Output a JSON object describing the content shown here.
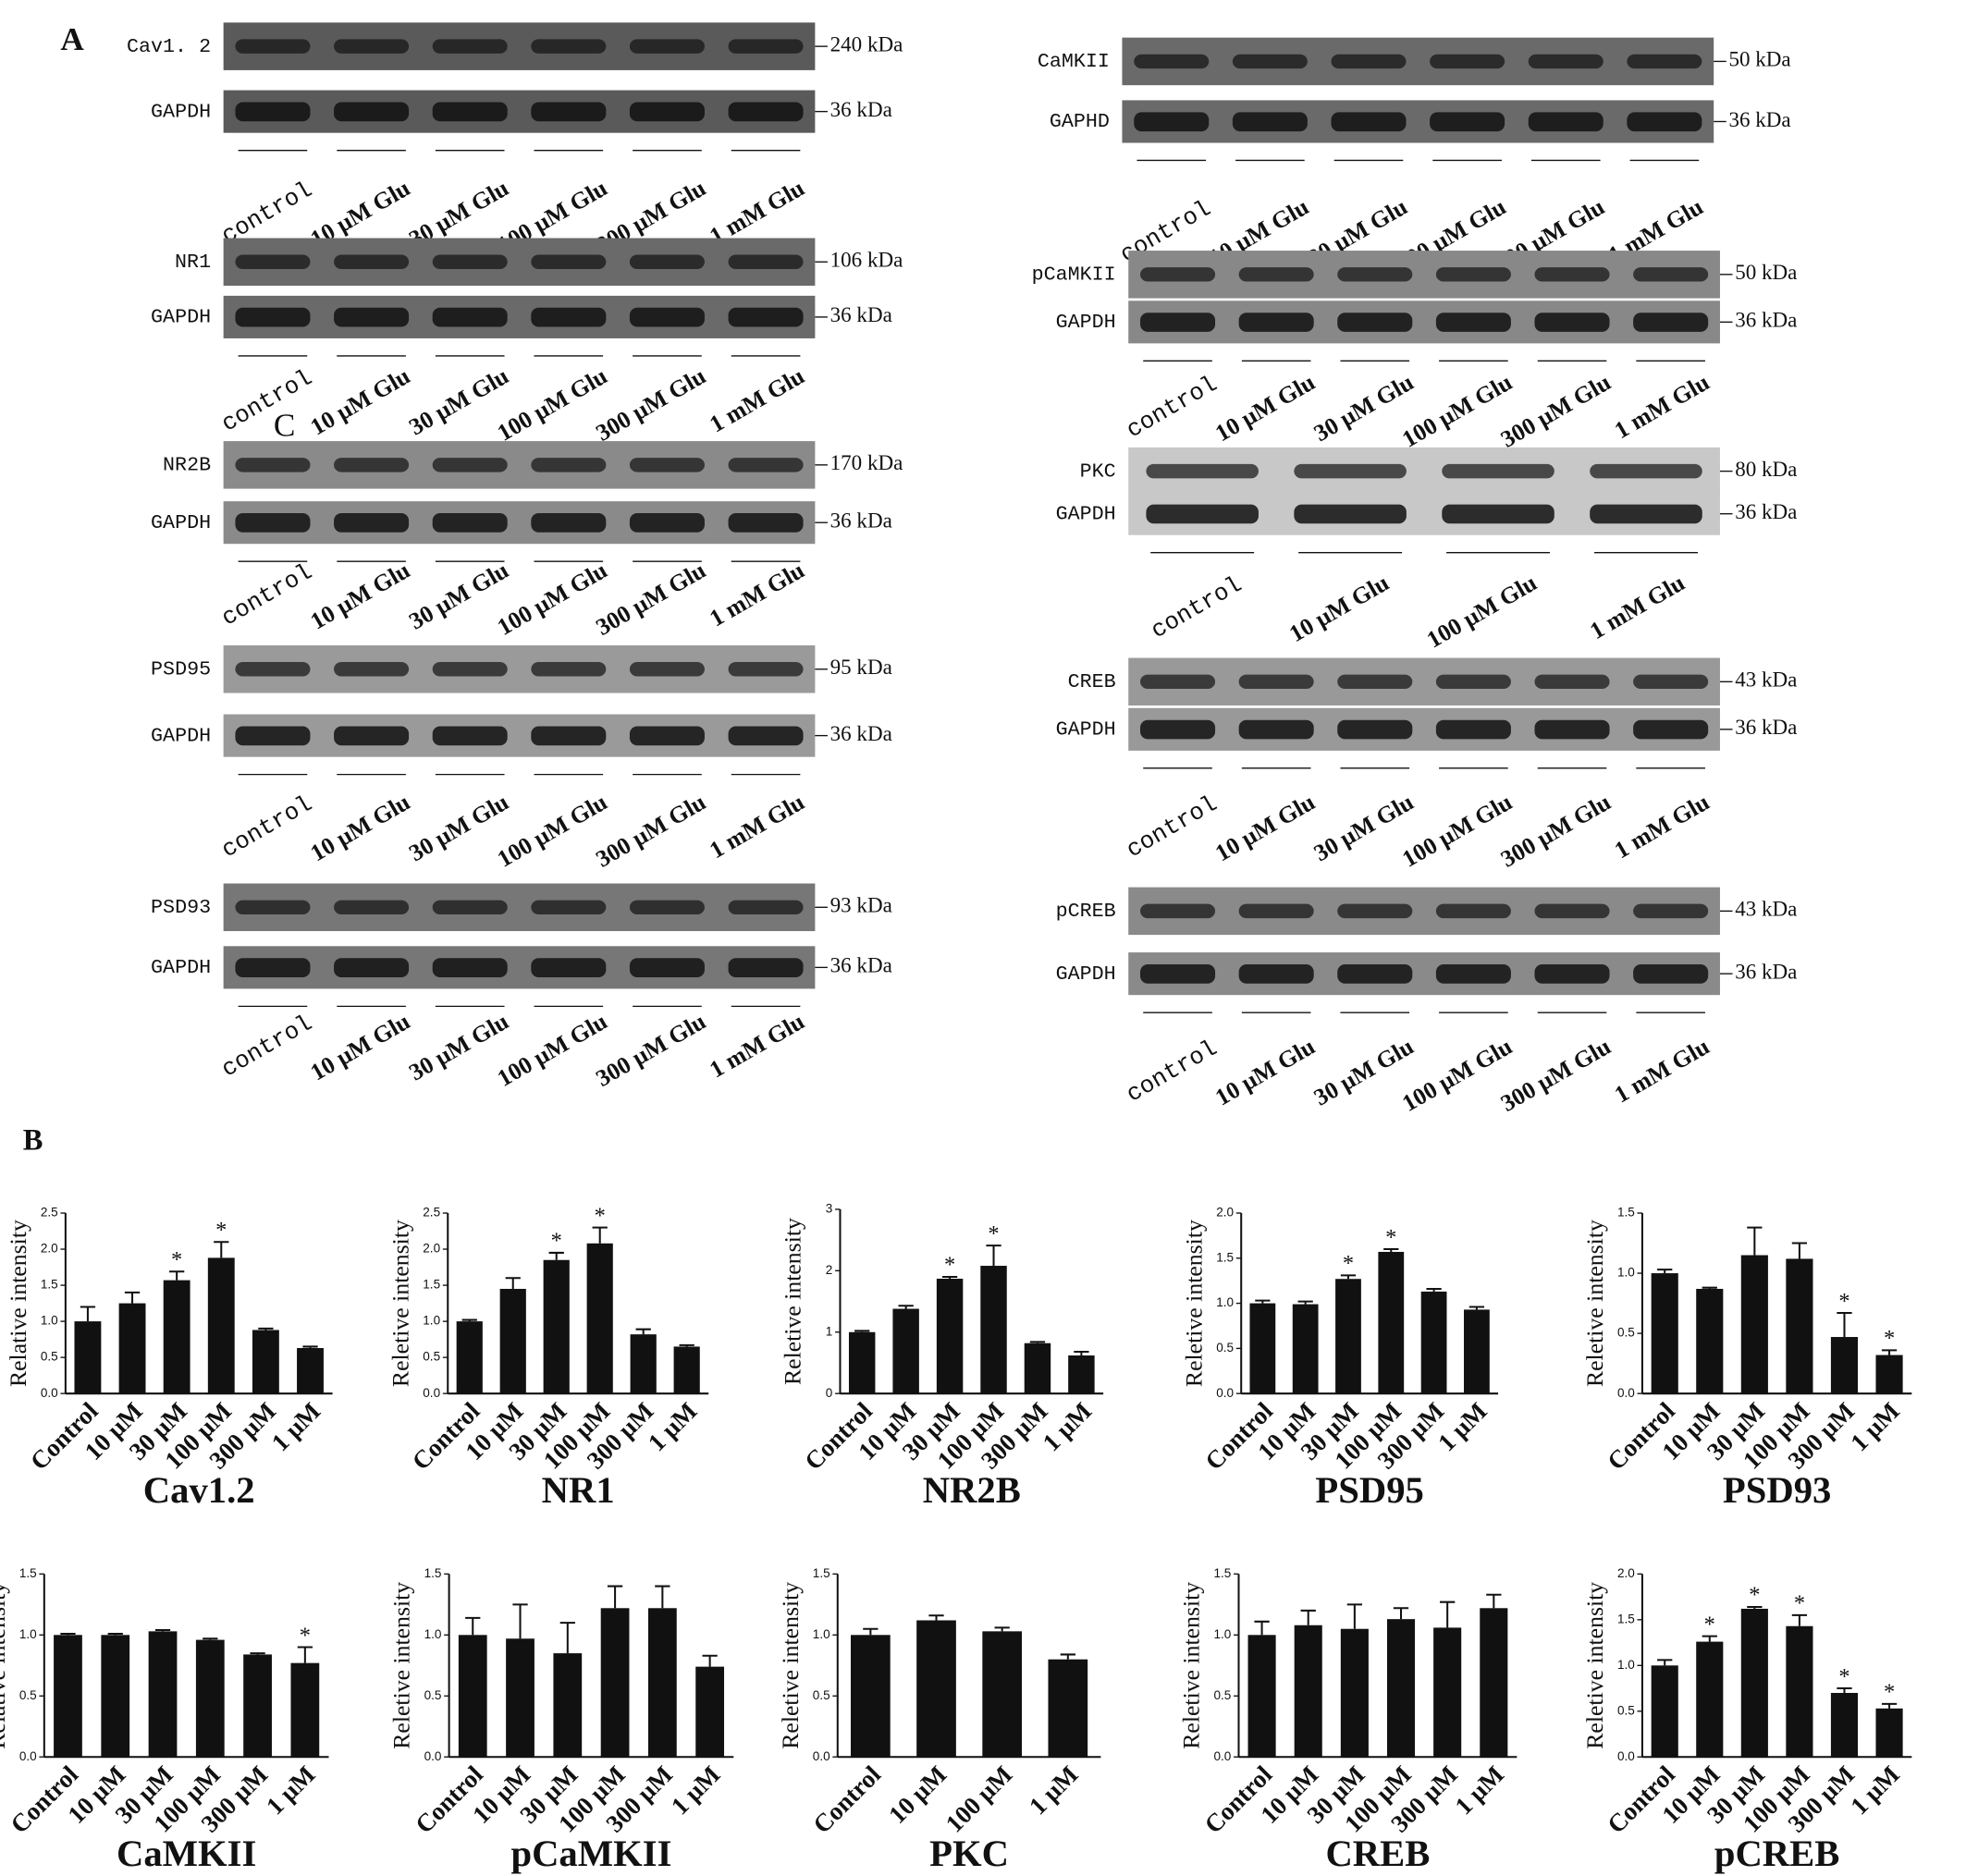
{
  "labels": {
    "a": "A",
    "b": "B",
    "c": "C"
  },
  "blots": [
    {
      "label": "Cav1. 2",
      "kda": "240 kDa",
      "loading": "GAPDH",
      "loading_kda": "36 kDa",
      "lanes": [
        "control",
        "10 μM Glu",
        "30 μM Glu",
        "100 μM Glu",
        "300 μM Glu",
        "1 mM Glu"
      ]
    },
    {
      "label": "NR1",
      "kda": "106 kDa",
      "loading": "GAPDH",
      "loading_kda": "36 kDa",
      "lanes": [
        "control",
        "10 μM Glu",
        "30 μM Glu",
        "100 μM Glu",
        "300 μM Glu",
        "1 mM Glu"
      ]
    },
    {
      "label": "NR2B",
      "kda": "170 kDa",
      "loading": "GAPDH",
      "loading_kda": "36 kDa",
      "lanes": [
        "control",
        "10 μM Glu",
        "30 μM Glu",
        "100 μM Glu",
        "300 μM Glu",
        "1 mM Glu"
      ]
    },
    {
      "label": "PSD95",
      "kda": "95 kDa",
      "loading": "GAPDH",
      "loading_kda": "36 kDa",
      "lanes": [
        "control",
        "10 μM Glu",
        "30 μM Glu",
        "100 μM Glu",
        "300 μM Glu",
        "1 mM Glu"
      ]
    },
    {
      "label": "PSD93",
      "kda": "93 kDa",
      "loading": "GAPDH",
      "loading_kda": "36 kDa",
      "lanes": [
        "control",
        "10 μM Glu",
        "30 μM Glu",
        "100 μM Glu",
        "300 μM Glu",
        "1 mM Glu"
      ]
    },
    {
      "label": "CaMKII",
      "kda": "50 kDa",
      "loading": "GAPHD",
      "loading_kda": "36 kDa",
      "lanes": [
        "control",
        "10 μM Glu",
        "30 μM Glu",
        "100 μM Glu",
        "300 μM Glu",
        "1 mM Glu"
      ]
    },
    {
      "label": "pCaMKII",
      "kda": "50 kDa",
      "loading": "GAPDH",
      "loading_kda": "36 kDa",
      "lanes": [
        "control",
        "10 μM Glu",
        "30 μM Glu",
        "100 μM Glu",
        "300 μM Glu",
        "1 mM Glu"
      ]
    },
    {
      "label": "PKC",
      "kda": "80 kDa",
      "loading": "GAPDH",
      "loading_kda": "36 kDa",
      "lanes": [
        "control",
        "10 μM Glu",
        "100 μM Glu",
        "1 mM Glu"
      ]
    },
    {
      "label": "CREB",
      "kda": "43 kDa",
      "loading": "GAPDH",
      "loading_kda": "36 kDa",
      "lanes": [
        "control",
        "10 μM Glu",
        "30 μM Glu",
        "100 μM Glu",
        "300 μM Glu",
        "1 mM Glu"
      ]
    },
    {
      "label": "pCREB",
      "kda": "43 kDa",
      "loading": "GAPDH",
      "loading_kda": "36 kDa",
      "lanes": [
        "control",
        "10 μM Glu",
        "30 μM Glu",
        "100 μM Glu",
        "300 μM Glu",
        "1 mM Glu"
      ]
    }
  ],
  "chart_data": [
    {
      "type": "bar",
      "title": "Cav1.2",
      "ylabel": "Relative intensity",
      "color": "#111111",
      "categories": [
        "Control",
        "10 μM",
        "30 μM",
        "100 μM",
        "300 μM",
        "1 μM"
      ],
      "values": [
        1.0,
        1.25,
        1.57,
        1.88,
        0.88,
        0.63
      ],
      "errors": [
        0.2,
        0.15,
        0.12,
        0.22,
        0.02,
        0.02
      ],
      "significance": [
        null,
        null,
        "*",
        "*",
        null,
        null
      ],
      "ylim": [
        0,
        2.5
      ],
      "yticks": [
        {
          "value": 0,
          "label": "0.0"
        },
        0.5,
        {
          "value": 1,
          "label": "1.0"
        },
        1.5,
        {
          "value": 2,
          "label": "2.0"
        },
        2.5
      ]
    },
    {
      "type": "bar",
      "title": "NR1",
      "ylabel": "Reletive intensity",
      "color": "#111111",
      "categories": [
        "Control",
        "10 μM",
        "30 μM",
        "100 μM",
        "300 μM",
        "1 μM"
      ],
      "values": [
        1.0,
        1.45,
        1.85,
        2.08,
        0.82,
        0.65
      ],
      "errors": [
        0.02,
        0.15,
        0.1,
        0.22,
        0.07,
        0.02
      ],
      "significance": [
        null,
        null,
        "*",
        "*",
        null,
        null
      ],
      "ylim": [
        0,
        2.5
      ],
      "yticks": [
        {
          "value": 0,
          "label": "0.0"
        },
        0.5,
        {
          "value": 1,
          "label": "1.0"
        },
        1.5,
        {
          "value": 2,
          "label": "2.0"
        },
        2.5
      ]
    },
    {
      "type": "bar",
      "title": "NR2B",
      "ylabel": "Reletive intensity",
      "color": "#111111",
      "categories": [
        "Control",
        "10 μM",
        "30 μM",
        "100 μM",
        "300 μM",
        "1 μM"
      ],
      "values": [
        1.0,
        1.38,
        1.87,
        2.08,
        0.82,
        0.62
      ],
      "errors": [
        0.02,
        0.05,
        0.03,
        0.33,
        0.02,
        0.06
      ],
      "significance": [
        null,
        null,
        "*",
        "*",
        null,
        null
      ],
      "ylim": [
        0,
        3
      ],
      "yticks": [
        0,
        1,
        2,
        3
      ]
    },
    {
      "type": "bar",
      "title": "PSD95",
      "ylabel": "Reletive intensity",
      "color": "#111111",
      "categories": [
        "Control",
        "10 μM",
        "30 μM",
        "100 μM",
        "300 μM",
        "1 μM"
      ],
      "values": [
        1.0,
        0.99,
        1.27,
        1.57,
        1.13,
        0.93
      ],
      "errors": [
        0.03,
        0.03,
        0.04,
        0.03,
        0.03,
        0.03
      ],
      "significance": [
        null,
        null,
        "*",
        "*",
        null,
        null
      ],
      "ylim": [
        0,
        2
      ],
      "yticks": [
        {
          "value": 0,
          "label": "0.0"
        },
        0.5,
        {
          "value": 1,
          "label": "1.0"
        },
        1.5,
        {
          "value": 2,
          "label": "2.0"
        }
      ]
    },
    {
      "type": "bar",
      "title": "PSD93",
      "ylabel": "Reletive intensity",
      "color": "#111111",
      "categories": [
        "Control",
        "10 μM",
        "30 μM",
        "100 μM",
        "300 μM",
        "1 μM"
      ],
      "values": [
        1.0,
        0.87,
        1.15,
        1.12,
        0.47,
        0.32
      ],
      "errors": [
        0.03,
        0.01,
        0.23,
        0.13,
        0.2,
        0.04
      ],
      "significance": [
        null,
        null,
        null,
        null,
        "*",
        "*"
      ],
      "ylim": [
        0,
        1.5
      ],
      "yticks": [
        {
          "value": 0,
          "label": "0.0"
        },
        0.5,
        {
          "value": 1,
          "label": "1.0"
        },
        1.5
      ]
    },
    {
      "type": "bar",
      "title": "CaMKII",
      "ylabel": "Relative intensity",
      "color": "#111111",
      "categories": [
        "Control",
        "10 μM",
        "30 μM",
        "100 μM",
        "300 μM",
        "1 μM"
      ],
      "values": [
        1.0,
        1.0,
        1.03,
        0.96,
        0.84,
        0.77
      ],
      "errors": [
        0.01,
        0.01,
        0.01,
        0.01,
        0.01,
        0.13
      ],
      "significance": [
        null,
        null,
        null,
        null,
        null,
        "*"
      ],
      "ylim": [
        0,
        1.5
      ],
      "yticks": [
        {
          "value": 0,
          "label": "0.0"
        },
        0.5,
        {
          "value": 1,
          "label": "1.0"
        },
        1.5
      ]
    },
    {
      "type": "bar",
      "title": "pCaMKII",
      "ylabel": "Reletive intensity",
      "color": "#111111",
      "categories": [
        "Control",
        "10 μM",
        "30 μM",
        "100 μM",
        "300 μM",
        "1 μM"
      ],
      "values": [
        1.0,
        0.97,
        0.85,
        1.22,
        1.22,
        0.74
      ],
      "errors": [
        0.14,
        0.28,
        0.25,
        0.18,
        0.18,
        0.09
      ],
      "ylim": [
        0,
        1.5
      ],
      "yticks": [
        {
          "value": 0,
          "label": "0.0"
        },
        0.5,
        {
          "value": 1,
          "label": "1.0"
        },
        1.5
      ]
    },
    {
      "type": "bar",
      "title": "PKC",
      "ylabel": "Reletive intensity",
      "color": "#111111",
      "categories": [
        "Control",
        "10 μM",
        "100 μM",
        "1 μM"
      ],
      "values": [
        1.0,
        1.12,
        1.03,
        0.8
      ],
      "errors": [
        0.05,
        0.04,
        0.03,
        0.04
      ],
      "ylim": [
        0,
        1.5
      ],
      "yticks": [
        {
          "value": 0,
          "label": "0.0"
        },
        0.5,
        {
          "value": 1,
          "label": "1.0"
        },
        1.5
      ]
    },
    {
      "type": "bar",
      "title": "CREB",
      "ylabel": "Reletive intensity",
      "color": "#111111",
      "categories": [
        "Control",
        "10 μM",
        "30 μM",
        "100 μM",
        "300 μM",
        "1 μM"
      ],
      "values": [
        1.0,
        1.08,
        1.05,
        1.13,
        1.06,
        1.22
      ],
      "errors": [
        0.11,
        0.12,
        0.2,
        0.09,
        0.21,
        0.11
      ],
      "ylim": [
        0,
        1.5
      ],
      "yticks": [
        {
          "value": 0,
          "label": "0.0"
        },
        0.5,
        {
          "value": 1,
          "label": "1.0"
        },
        1.5
      ]
    },
    {
      "type": "bar",
      "title": "pCREB",
      "ylabel": "Reletive intensity",
      "color": "#111111",
      "categories": [
        "Control",
        "10 μM",
        "30 μM",
        "100 μM",
        "300 μM",
        "1 μM"
      ],
      "values": [
        1.0,
        1.26,
        1.62,
        1.43,
        0.7,
        0.53
      ],
      "errors": [
        0.06,
        0.06,
        0.02,
        0.12,
        0.05,
        0.05
      ],
      "significance": [
        null,
        "*",
        "*",
        "*",
        "*",
        "*"
      ],
      "ylim": [
        0,
        2
      ],
      "yticks": [
        {
          "value": 0,
          "label": "0.0"
        },
        0.5,
        {
          "value": 1,
          "label": "1.0"
        },
        1.5,
        {
          "value": 2,
          "label": "2.0"
        }
      ]
    }
  ]
}
